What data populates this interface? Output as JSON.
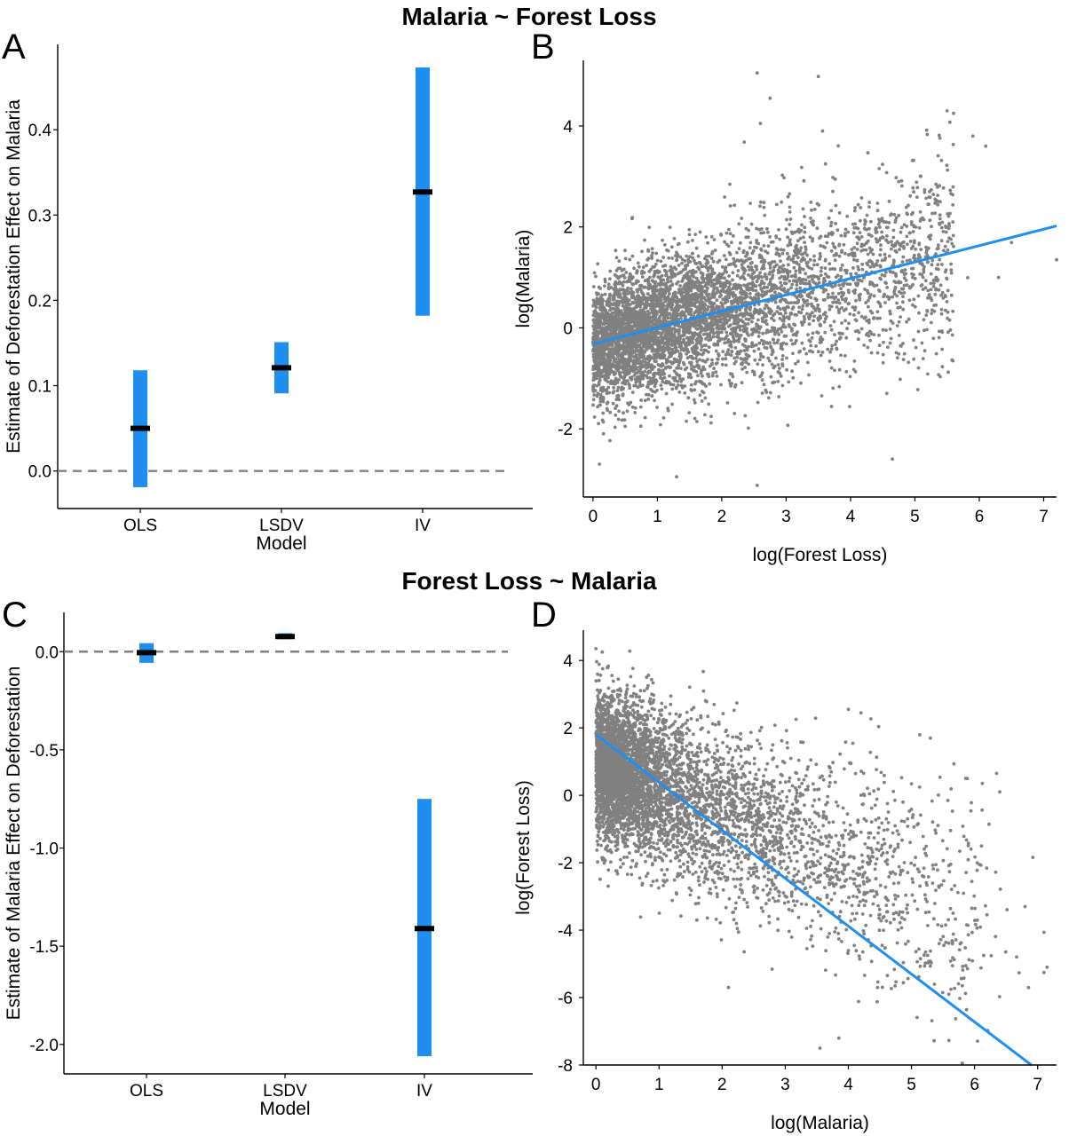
{
  "titles": {
    "top": "Malaria ~ Forest Loss",
    "bottom": "Forest Loss ~ Malaria"
  },
  "panels": {
    "a": "A",
    "b": "B",
    "c": "C",
    "d": "D"
  },
  "colors": {
    "bar": "#1e8ff0",
    "estimate": "#000000",
    "points": "#808080",
    "fit": "#1e8ff0",
    "zero_line": "#808080"
  },
  "chart_data": [
    {
      "panel": "A",
      "type": "bar",
      "subtype": "point-estimate with confidence interval",
      "categories": [
        "OLS",
        "LSDV",
        "IV"
      ],
      "estimate": [
        0.05,
        0.121,
        0.327
      ],
      "ci_low": [
        -0.019,
        0.091,
        0.182
      ],
      "ci_high": [
        0.118,
        0.151,
        0.473
      ],
      "xlabel": "Model",
      "ylabel": "Estimate of Deforestation Effect on Malaria",
      "ylim": [
        -0.044,
        0.5
      ],
      "yticks": [
        0.0,
        0.1,
        0.2,
        0.3,
        0.4
      ],
      "ytick_labels": [
        "0.0",
        "0.1",
        "0.2",
        "0.3",
        "0.4"
      ],
      "reference_line": 0.0,
      "grid": false
    },
    {
      "panel": "B",
      "type": "scatter",
      "xlabel": "log(Forest Loss)",
      "ylabel": "log(Malaria)",
      "xlim": [
        -0.15,
        7.2
      ],
      "ylim": [
        -3.35,
        5.3
      ],
      "xticks": [
        0,
        1,
        2,
        3,
        4,
        5,
        6,
        7
      ],
      "yticks": [
        -2,
        0,
        2,
        4
      ],
      "fit_line": {
        "x": [
          0.0,
          7.2
        ],
        "y": [
          -0.32,
          2.02
        ]
      },
      "points_description": "Dense cloud of several thousand points. Most points lie between x=0 and x=5.5 with log(Malaria) roughly from -1 to 3.",
      "points_sample": [
        [
          2.55,
          5.05
        ],
        [
          3.5,
          4.98
        ],
        [
          2.75,
          4.55
        ],
        [
          2.6,
          4.05
        ],
        [
          2.35,
          3.68
        ],
        [
          5.5,
          4.3
        ],
        [
          5.6,
          4.25
        ],
        [
          5.9,
          3.8
        ],
        [
          6.1,
          3.6
        ],
        [
          0.1,
          -2.7
        ],
        [
          1.3,
          -2.95
        ],
        [
          2.55,
          -3.12
        ],
        [
          4.65,
          -2.6
        ],
        [
          7.2,
          1.35
        ],
        [
          6.3,
          1.0
        ]
      ],
      "grid": false
    },
    {
      "panel": "C",
      "type": "bar",
      "subtype": "point-estimate with confidence interval",
      "categories": [
        "OLS",
        "LSDV",
        "IV"
      ],
      "estimate": [
        -0.005,
        0.077,
        -1.41
      ],
      "ci_low": [
        -0.057,
        0.063,
        -2.06
      ],
      "ci_high": [
        0.043,
        0.094,
        -0.75
      ],
      "xlabel": "Model",
      "ylabel": "Estimate of Malaria Effect on Deforestation",
      "ylim": [
        -2.15,
        0.2
      ],
      "yticks": [
        0.0,
        -0.5,
        -1.0,
        -1.5,
        -2.0
      ],
      "ytick_labels": [
        "0.0",
        "-0.5",
        "-1.0",
        "-1.5",
        "-2.0"
      ],
      "reference_line": 0.0,
      "grid": false
    },
    {
      "panel": "D",
      "type": "scatter",
      "xlabel": "log(Malaria)",
      "ylabel": "log(Forest Loss)",
      "xlim": [
        -0.2,
        7.3
      ],
      "ylim": [
        -8.0,
        4.9
      ],
      "xticks": [
        0,
        1,
        2,
        3,
        4,
        5,
        6,
        7
      ],
      "yticks": [
        -8,
        -6,
        -4,
        -2,
        0,
        2,
        4
      ],
      "fit_line": {
        "x": [
          0.0,
          6.9
        ],
        "y": [
          1.8,
          -8.0
        ]
      },
      "points_description": "Dense cloud concentrated near x=0 with log(Forest Loss) from about -2 to 4, spreading and declining toward x=6 where values range about -6 to -1.",
      "points_sample": [
        [
          0.0,
          4.35
        ],
        [
          0.1,
          4.25
        ],
        [
          3.55,
          -7.5
        ],
        [
          3.85,
          -7.2
        ],
        [
          4.0,
          2.55
        ],
        [
          4.2,
          2.45
        ],
        [
          5.3,
          1.7
        ],
        [
          6.35,
          0.65
        ],
        [
          6.4,
          0.1
        ],
        [
          7.15,
          -5.1
        ],
        [
          6.8,
          -3.3
        ],
        [
          2.1,
          -5.7
        ]
      ],
      "grid": false
    }
  ]
}
